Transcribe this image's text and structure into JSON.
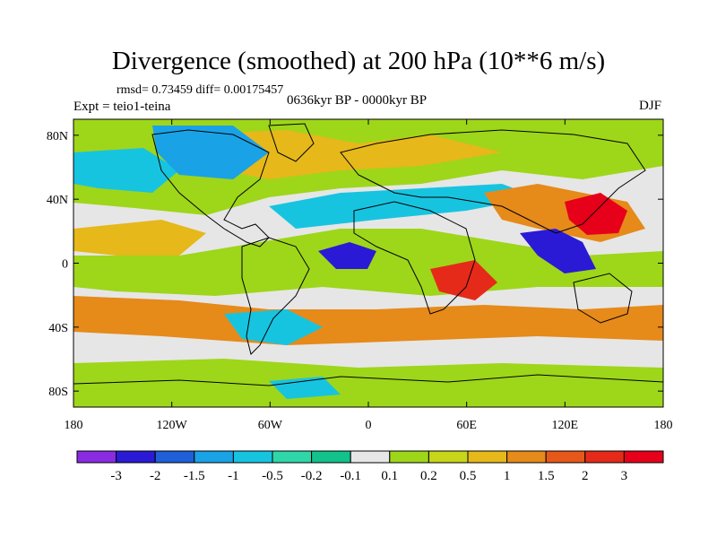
{
  "title": "Divergence (smoothed) at 200 hPa (10**6 m/s)",
  "stats_line": "rmsd= 0.73459 diff= 0.00175457",
  "experiment": "Expt = teio1-teina",
  "period": "0636kyr BP - 0000kyr BP",
  "season": "DJF",
  "axes": {
    "lon_labels": [
      "180",
      "120W",
      "60W",
      "0",
      "60E",
      "120E",
      "180"
    ],
    "lat_labels": [
      "80N",
      "40N",
      "0",
      "40S",
      "80S"
    ]
  },
  "colorbar": {
    "labels": [
      "-3",
      "-2",
      "-1.5",
      "-1",
      "-0.5",
      "-0.2",
      "-0.1",
      "0.1",
      "0.2",
      "0.5",
      "1",
      "1.5",
      "2",
      "3"
    ],
    "colors": [
      "#8a2be2",
      "#2a1ad6",
      "#1f5fd8",
      "#1aa2e6",
      "#17c4e0",
      "#2fd6a8",
      "#12c28a",
      "#e6e6e6",
      "#9ed61a",
      "#c8d61a",
      "#e6b81a",
      "#e68a1a",
      "#e6581a",
      "#e62a1a",
      "#e6001a"
    ]
  }
}
